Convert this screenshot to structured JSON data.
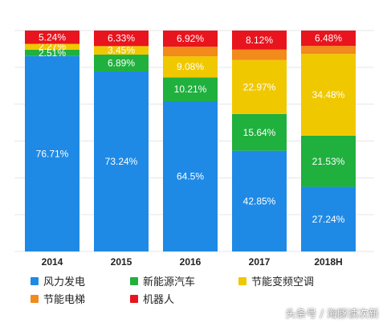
{
  "chart_data": {
    "type": "bar",
    "stacked": true,
    "categories": [
      "2014",
      "2015",
      "2016",
      "2017",
      "2018H"
    ],
    "series": [
      {
        "name": "风力发电",
        "color": "#1f8ae5",
        "values": [
          76.71,
          73.24,
          64.5,
          42.85,
          27.24
        ],
        "labels": [
          "76.71%",
          "73.24%",
          "64.5%",
          "42.85%",
          "27.24%"
        ]
      },
      {
        "name": "新能源汽车",
        "color": "#20b03e",
        "values": [
          2.51,
          6.89,
          10.21,
          15.64,
          21.53
        ],
        "labels": [
          "2.51%",
          "6.89%",
          "10.21%",
          "15.64%",
          "21.53%"
        ]
      },
      {
        "name": "节能变频空调",
        "color": "#f0c800",
        "values": [
          2.27,
          3.45,
          9.08,
          22.97,
          34.48
        ],
        "labels": [
          "2.27%",
          "3.45%",
          "9.08%",
          "22.97%",
          "34.48%"
        ]
      },
      {
        "name": "节能电梯",
        "color": "#f28a1c",
        "values": [
          0,
          0,
          0,
          0,
          0
        ],
        "labels": [
          "",
          "",
          "",
          "",
          ""
        ]
      },
      {
        "name": "机器人",
        "color": "#e8141e",
        "values": [
          5.24,
          6.33,
          6.92,
          8.12,
          6.48
        ],
        "labels": [
          "5.24%",
          "6.33%",
          "6.92%",
          "8.12%",
          "6.48%"
        ]
      }
    ],
    "grid": true,
    "legend_position": "bottom"
  },
  "watermark": "头条号 / 海豚读次新"
}
